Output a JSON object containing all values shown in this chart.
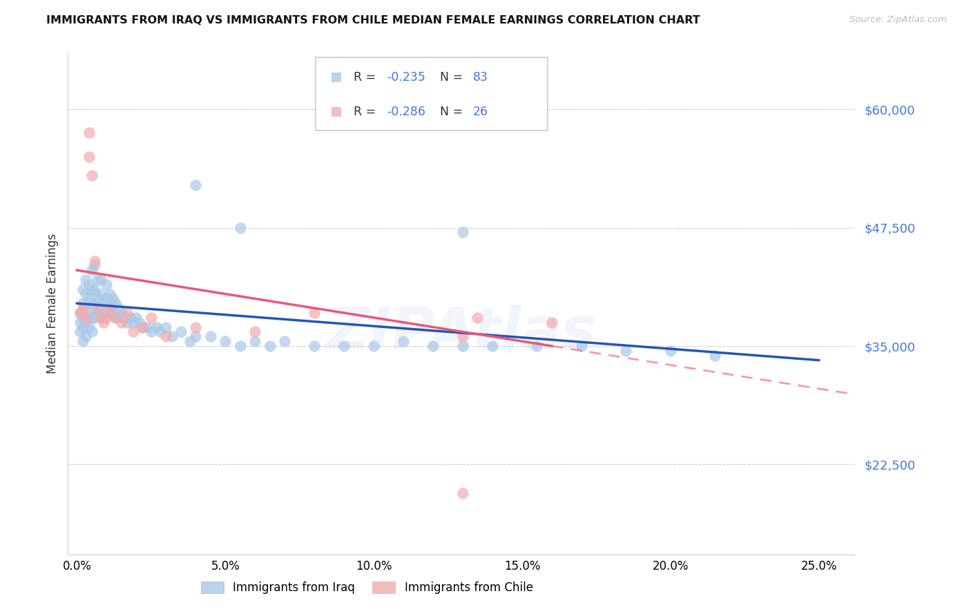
{
  "title": "IMMIGRANTS FROM IRAQ VS IMMIGRANTS FROM CHILE MEDIAN FEMALE EARNINGS CORRELATION CHART",
  "source": "Source: ZipAtlas.com",
  "ylabel": "Median Female Earnings",
  "ytick_vals": [
    22500,
    35000,
    47500,
    60000
  ],
  "ytick_labels": [
    "$22,500",
    "$35,000",
    "$47,500",
    "$60,000"
  ],
  "xtick_vals": [
    0.0,
    0.05,
    0.1,
    0.15,
    0.2,
    0.25
  ],
  "xtick_labels": [
    "0.0%",
    "5.0%",
    "10.0%",
    "15.0%",
    "20.0%",
    "25.0%"
  ],
  "ymin": 13000,
  "ymax": 66000,
  "xmin": -0.003,
  "xmax": 0.262,
  "iraq_R": "-0.235",
  "iraq_N": "83",
  "chile_R": "-0.286",
  "chile_N": "26",
  "iraq_color": "#A8C8E8",
  "chile_color": "#F4AAAA",
  "iraq_line_color": "#2255BB",
  "chile_line_color": "#EE5577",
  "grid_color": "#CCCCCC",
  "label_color": "#4477DD",
  "iraq_x": [
    0.001,
    0.001,
    0.001,
    0.002,
    0.002,
    0.002,
    0.002,
    0.002,
    0.003,
    0.003,
    0.003,
    0.003,
    0.003,
    0.004,
    0.004,
    0.004,
    0.004,
    0.005,
    0.005,
    0.005,
    0.005,
    0.005,
    0.006,
    0.006,
    0.006,
    0.006,
    0.007,
    0.007,
    0.007,
    0.008,
    0.008,
    0.008,
    0.009,
    0.009,
    0.01,
    0.01,
    0.01,
    0.011,
    0.011,
    0.012,
    0.012,
    0.013,
    0.013,
    0.014,
    0.014,
    0.015,
    0.016,
    0.017,
    0.018,
    0.019,
    0.02,
    0.021,
    0.022,
    0.024,
    0.025,
    0.027,
    0.028,
    0.03,
    0.032,
    0.035,
    0.038,
    0.04,
    0.045,
    0.05,
    0.055,
    0.06,
    0.065,
    0.07,
    0.08,
    0.09,
    0.1,
    0.11,
    0.12,
    0.13,
    0.14,
    0.155,
    0.17,
    0.185,
    0.2,
    0.215,
    0.04,
    0.055,
    0.13
  ],
  "iraq_y": [
    36500,
    37500,
    38500,
    35500,
    37000,
    38000,
    39500,
    41000,
    36000,
    37500,
    39000,
    40500,
    42000,
    37000,
    38500,
    40000,
    41500,
    36500,
    38000,
    39500,
    41000,
    43000,
    38000,
    39500,
    41000,
    43500,
    38500,
    40000,
    42000,
    39000,
    40500,
    42000,
    38000,
    39500,
    38500,
    40000,
    41500,
    39000,
    40500,
    38500,
    40000,
    38000,
    39500,
    38000,
    39000,
    38500,
    38000,
    37500,
    38000,
    37500,
    38000,
    37500,
    37000,
    37000,
    36500,
    37000,
    36500,
    37000,
    36000,
    36500,
    35500,
    36000,
    36000,
    35500,
    35000,
    35500,
    35000,
    35500,
    35000,
    35000,
    35000,
    35500,
    35000,
    35000,
    35000,
    35000,
    35000,
    34500,
    34500,
    34000,
    52000,
    47500,
    47000
  ],
  "chile_x": [
    0.001,
    0.002,
    0.003,
    0.004,
    0.004,
    0.005,
    0.006,
    0.007,
    0.008,
    0.009,
    0.01,
    0.011,
    0.013,
    0.015,
    0.017,
    0.019,
    0.022,
    0.025,
    0.03,
    0.04,
    0.06,
    0.08,
    0.13,
    0.16,
    0.135,
    0.13
  ],
  "chile_y": [
    38500,
    39000,
    38000,
    57500,
    55000,
    53000,
    44000,
    39000,
    38000,
    37500,
    38000,
    39000,
    38000,
    37500,
    38500,
    36500,
    37000,
    38000,
    36000,
    37000,
    36500,
    38500,
    36000,
    37500,
    38000,
    19500
  ]
}
